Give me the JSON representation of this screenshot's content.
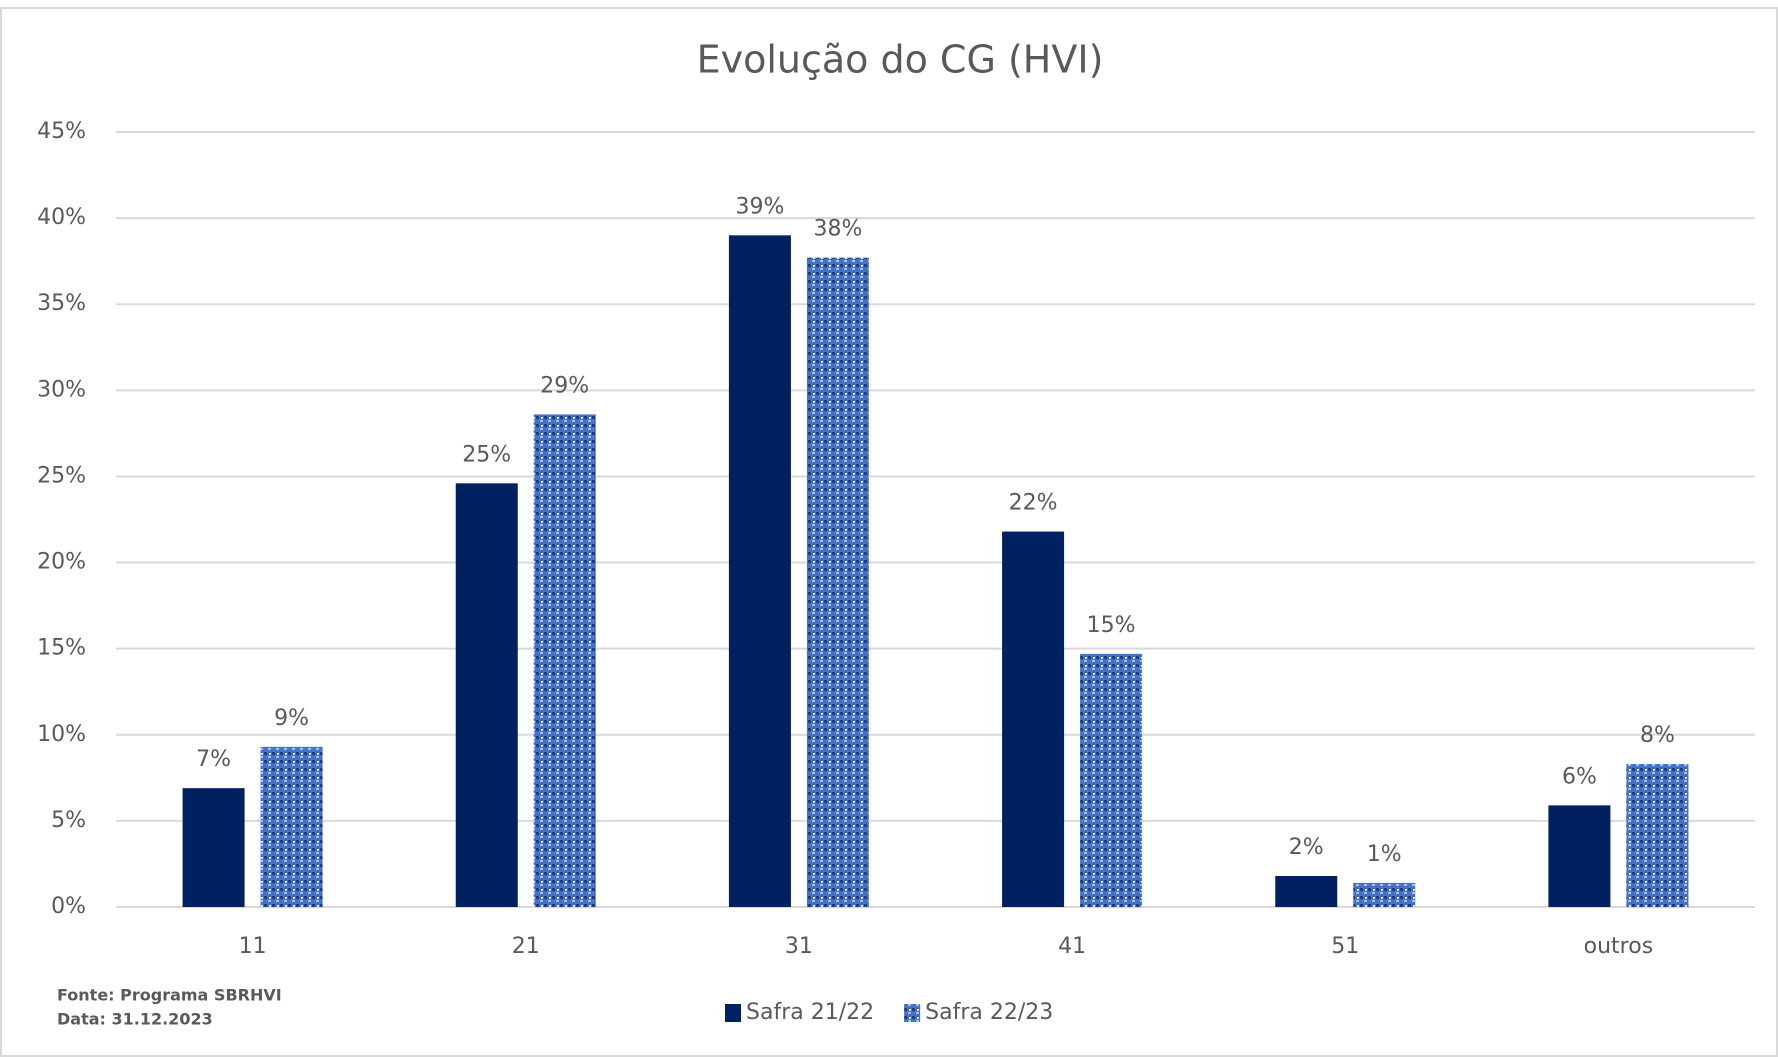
{
  "chart_data": {
    "type": "bar",
    "title": "Evolução do CG (HVI)",
    "categories": [
      "11",
      "21",
      "31",
      "41",
      "51",
      "outros"
    ],
    "series": [
      {
        "name": "Safra 21/22",
        "color": "#002060",
        "values": [
          6.9,
          24.6,
          39,
          21.8,
          1.8,
          5.9
        ],
        "value_labels": [
          "7%",
          "25%",
          "39%",
          "22%",
          "2%",
          "6%"
        ]
      },
      {
        "name": "Safra 22/23",
        "color": "#4472c4",
        "values": [
          9.3,
          28.6,
          37.7,
          14.7,
          1.4,
          8.3
        ],
        "value_labels": [
          "9%",
          "29%",
          "38%",
          "15%",
          "1%",
          "8%"
        ]
      }
    ],
    "ylim": [
      0,
      45
    ],
    "yticks": [
      {
        "value": 0,
        "label": "0%"
      },
      {
        "value": 5,
        "label": "5%"
      },
      {
        "value": 10,
        "label": "10%"
      },
      {
        "value": 15,
        "label": "15%"
      },
      {
        "value": 20,
        "label": "20%"
      },
      {
        "value": 25,
        "label": "25%"
      },
      {
        "value": 30,
        "label": "30%"
      },
      {
        "value": 35,
        "label": "35%"
      },
      {
        "value": 40,
        "label": "40%"
      },
      {
        "value": 45,
        "label": "45%"
      }
    ],
    "grid": true,
    "legend": "bottom",
    "source": "Fonte: Programa SBRHVI",
    "date": "Data: 31.12.2023"
  }
}
